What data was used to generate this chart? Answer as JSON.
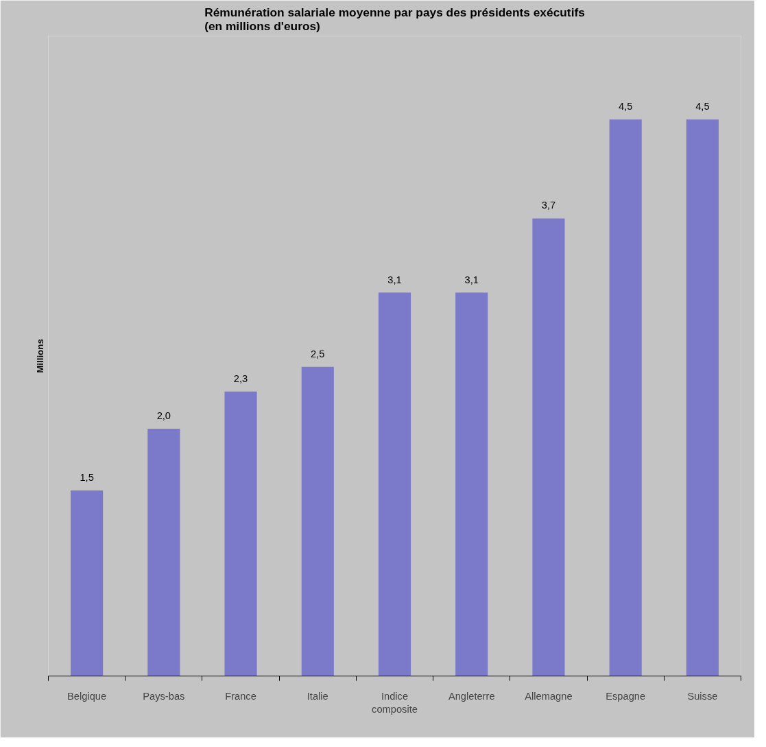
{
  "chart_data": {
    "type": "bar",
    "title": "Rémunération salariale moyenne par pays des présidents exécutifs\n(en millions d'euros)",
    "ylabel": "Millions",
    "categories": [
      "Belgique",
      "Pays-bas",
      "France",
      "Italie",
      "Indice composite",
      "Angleterre",
      "Allemagne",
      "Espagne",
      "Suisse"
    ],
    "values": [
      1.5,
      2.0,
      2.3,
      2.5,
      3.1,
      3.1,
      3.7,
      4.5,
      4.5
    ],
    "value_labels": [
      "1,5",
      "2,0",
      "2,3",
      "2,5",
      "3,1",
      "3,1",
      "3,7",
      "4,5",
      "4,5"
    ],
    "color": "#7b79c9",
    "grid": false
  }
}
